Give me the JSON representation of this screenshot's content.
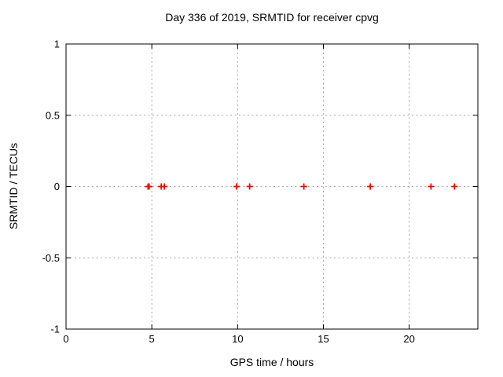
{
  "chart_data": {
    "type": "scatter",
    "title": "Day 336 of 2019, SRMTID for receiver cpvg",
    "xlabel": "GPS time / hours",
    "ylabel": "SRMTID / TECUs",
    "xlim": [
      0,
      24
    ],
    "ylim": [
      -1,
      1
    ],
    "xticks": [
      0,
      5,
      10,
      15,
      20
    ],
    "yticks": [
      -1,
      -0.5,
      0,
      0.5,
      1
    ],
    "grid": true,
    "grid_style": "dashed",
    "legend": "none",
    "marker": "plus",
    "series": [
      {
        "name": "SRMTID",
        "color": "#ff0000",
        "x": [
          4.78,
          4.84,
          5.55,
          5.73,
          9.94,
          10.7,
          13.86,
          17.73,
          21.27,
          22.64
        ],
        "y": [
          0,
          0,
          0,
          0,
          0,
          0,
          0,
          0,
          0,
          0
        ]
      }
    ]
  },
  "colors": {
    "background": "#ffffff",
    "axis": "#000000",
    "grid": "#a6a6a6",
    "text": "#000000",
    "marker": "#ff0000"
  }
}
